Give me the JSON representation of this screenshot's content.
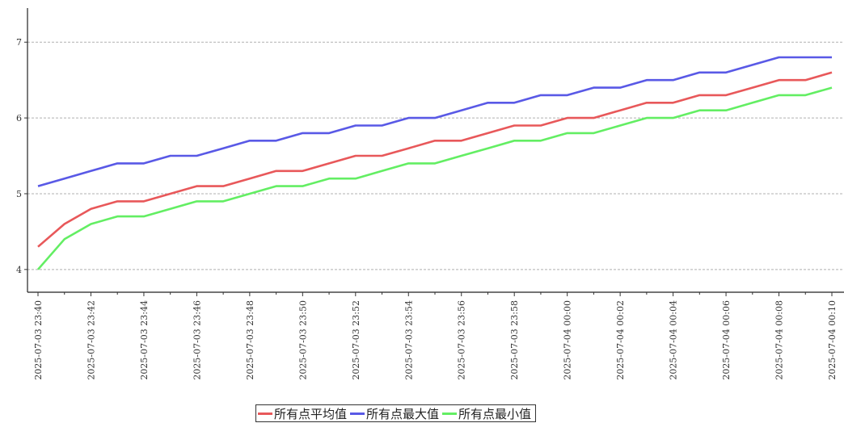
{
  "chart_data": {
    "type": "line",
    "x": [
      "2025-07-03 23:40",
      "2025-07-03 23:41",
      "2025-07-03 23:42",
      "2025-07-03 23:43",
      "2025-07-03 23:44",
      "2025-07-03 23:45",
      "2025-07-03 23:46",
      "2025-07-03 23:47",
      "2025-07-03 23:48",
      "2025-07-03 23:49",
      "2025-07-03 23:50",
      "2025-07-03 23:51",
      "2025-07-03 23:52",
      "2025-07-03 23:53",
      "2025-07-03 23:54",
      "2025-07-03 23:55",
      "2025-07-03 23:56",
      "2025-07-03 23:57",
      "2025-07-03 23:58",
      "2025-07-03 23:59",
      "2025-07-04 00:00",
      "2025-07-04 00:01",
      "2025-07-04 00:02",
      "2025-07-04 00:03",
      "2025-07-04 00:04",
      "2025-07-04 00:05",
      "2025-07-04 00:06",
      "2025-07-04 00:07",
      "2025-07-04 00:08",
      "2025-07-04 00:09",
      "2025-07-04 00:10"
    ],
    "x_tick_labels": [
      "2025-07-03 23:40",
      "2025-07-03 23:42",
      "2025-07-03 23:44",
      "2025-07-03 23:46",
      "2025-07-03 23:48",
      "2025-07-03 23:50",
      "2025-07-03 23:52",
      "2025-07-03 23:54",
      "2025-07-03 23:56",
      "2025-07-03 23:58",
      "2025-07-04 00:00",
      "2025-07-04 00:02",
      "2025-07-04 00:04",
      "2025-07-04 00:06",
      "2025-07-04 00:08",
      "2025-07-04 00:10"
    ],
    "series": [
      {
        "name": "所有点平均值",
        "color": "#e8585a",
        "values": [
          4.3,
          4.6,
          4.8,
          4.9,
          4.9,
          5.0,
          5.1,
          5.1,
          5.2,
          5.3,
          5.3,
          5.4,
          5.5,
          5.5,
          5.6,
          5.7,
          5.7,
          5.8,
          5.9,
          5.9,
          6.0,
          6.0,
          6.1,
          6.2,
          6.2,
          6.3,
          6.3,
          6.4,
          6.5,
          6.5,
          6.6
        ]
      },
      {
        "name": "所有点最大值",
        "color": "#5959e6",
        "values": [
          5.1,
          5.2,
          5.3,
          5.4,
          5.4,
          5.5,
          5.5,
          5.6,
          5.7,
          5.7,
          5.8,
          5.8,
          5.9,
          5.9,
          6.0,
          6.0,
          6.1,
          6.2,
          6.2,
          6.3,
          6.3,
          6.4,
          6.4,
          6.5,
          6.5,
          6.6,
          6.6,
          6.7,
          6.8,
          6.8,
          6.8
        ]
      },
      {
        "name": "所有点最小值",
        "color": "#63ee63",
        "values": [
          4.0,
          4.4,
          4.6,
          4.7,
          4.7,
          4.8,
          4.9,
          4.9,
          5.0,
          5.1,
          5.1,
          5.2,
          5.2,
          5.3,
          5.4,
          5.4,
          5.5,
          5.6,
          5.7,
          5.7,
          5.8,
          5.8,
          5.9,
          6.0,
          6.0,
          6.1,
          6.1,
          6.2,
          6.3,
          6.3,
          6.4
        ]
      }
    ],
    "y_ticks": [
      4,
      5,
      6,
      7
    ],
    "ylim": [
      3.7,
      7.45
    ],
    "grid": "horizontal dashed",
    "legend": "bottom-center",
    "title": "",
    "xlabel": "",
    "ylabel": ""
  }
}
